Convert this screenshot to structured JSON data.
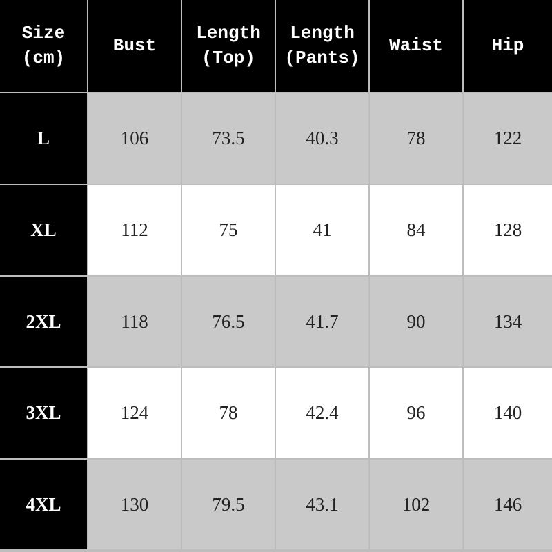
{
  "table": {
    "header": [
      "Size\n(cm)",
      "Bust",
      "Length\n(Top)",
      "Length\n(Pants)",
      "Waist",
      "Hip"
    ],
    "rows": [
      [
        "L",
        106,
        73.5,
        40.3,
        78,
        122
      ],
      [
        "XL",
        112,
        75,
        41,
        84,
        128
      ],
      [
        "2XL",
        118,
        76.5,
        41.7,
        90,
        134
      ],
      [
        "3XL",
        124,
        78,
        42.4,
        96,
        140
      ],
      [
        "4XL",
        130,
        79.5,
        43.1,
        102,
        146
      ]
    ]
  }
}
